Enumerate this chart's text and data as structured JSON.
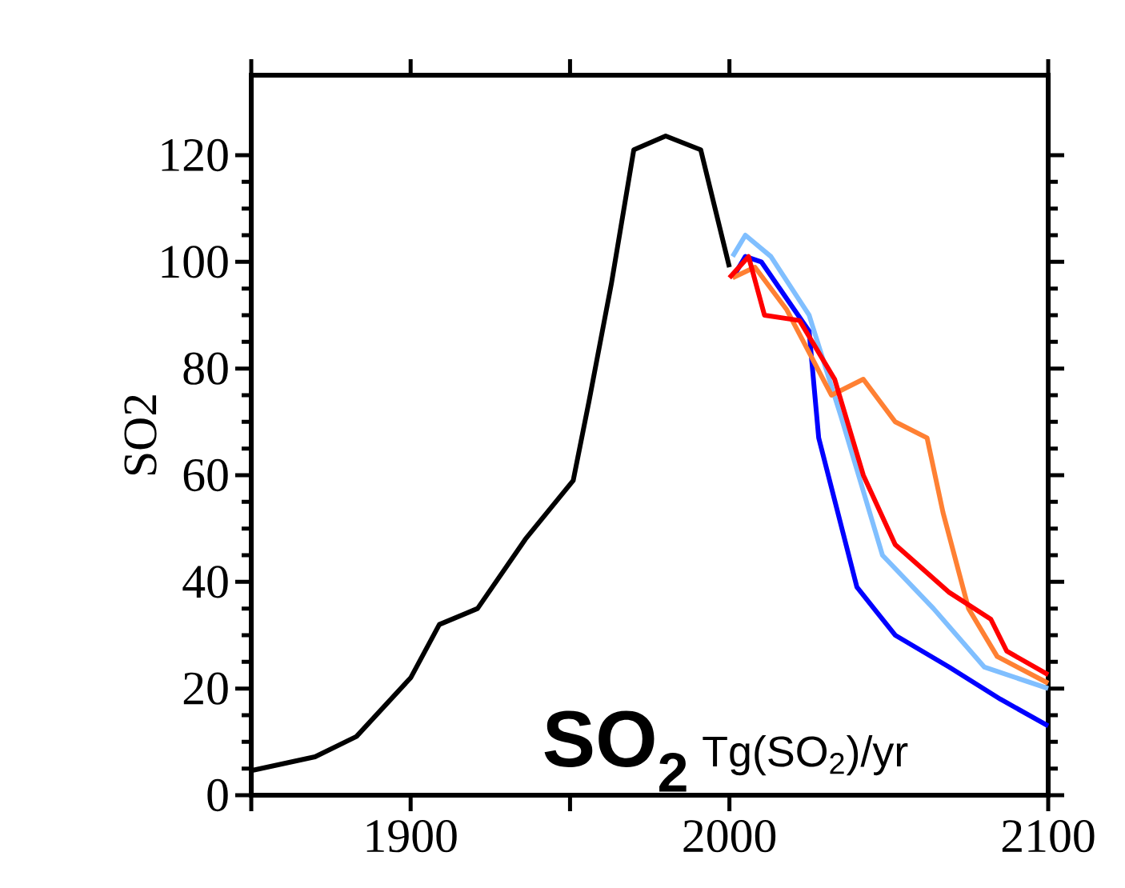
{
  "chart_data": {
    "type": "line",
    "ylabel": "SO2",
    "annotations": [
      "SO$_{2}$",
      "Tg(SO$_{2}$)/yr"
    ],
    "xlim": [
      1850,
      2100
    ],
    "ylim": [
      0,
      135
    ],
    "xticks": [
      {
        "value": 1850,
        "label": null
      },
      1900,
      {
        "value": 1950,
        "label": null
      },
      2000,
      2100
    ],
    "yticks": [
      0,
      20,
      40,
      60,
      80,
      100,
      120
    ],
    "grid": false,
    "marker": "none",
    "line_style": "solid",
    "series": [
      {
        "color": "#000000",
        "x": [
          1850,
          1870,
          1883,
          1900,
          1909,
          1921,
          1936,
          1951,
          1956,
          1963,
          1970,
          1980,
          1991,
          2000
        ],
        "values": [
          4.6,
          7.2,
          11,
          22,
          32,
          35,
          48,
          59,
          74,
          96,
          121,
          123.6,
          121,
          99
        ]
      },
      {
        "color": "#80bfff",
        "x": [
          2001,
          2005,
          2013,
          2025,
          2035,
          2048,
          2064,
          2080,
          2100
        ],
        "values": [
          101,
          105,
          101,
          90,
          71,
          45,
          35,
          24,
          20
        ]
      },
      {
        "color": "#0000ff",
        "x": [
          2001,
          2005,
          2010,
          2025,
          2028,
          2040,
          2052,
          2069,
          2085,
          2100
        ],
        "values": [
          97,
          101,
          100,
          87,
          67,
          39,
          30,
          24,
          18,
          13
        ]
      },
      {
        "color": "#ff8033",
        "x": [
          2001,
          2008,
          2018,
          2032,
          2042,
          2052,
          2062,
          2067,
          2075,
          2084,
          2100
        ],
        "values": [
          97,
          99,
          91,
          75,
          78,
          70,
          67,
          53,
          35,
          26,
          21
        ]
      },
      {
        "color": "#ff0000",
        "x": [
          2000,
          2006,
          2011,
          2022,
          2033,
          2042,
          2052,
          2069,
          2082,
          2087,
          2100
        ],
        "values": [
          97,
          101,
          90,
          89,
          78,
          60,
          47,
          38,
          33,
          27,
          22.6
        ]
      }
    ]
  }
}
